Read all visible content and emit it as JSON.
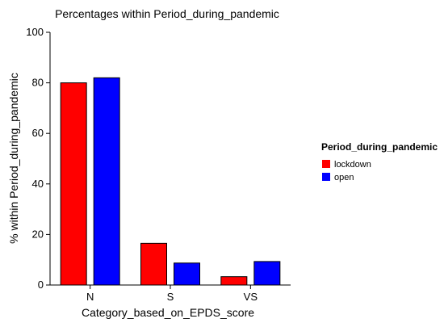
{
  "chart_data": {
    "type": "bar",
    "title": "Percentages within Period_during_pandemic",
    "xlabel": "Category_based_on_EPDS_score",
    "ylabel": "% within Period_during_pandemic",
    "categories": [
      "N",
      "S",
      "VS"
    ],
    "series": [
      {
        "name": "lockdown",
        "color": "#ff0000",
        "values": [
          80,
          16.5,
          3.3
        ]
      },
      {
        "name": "open",
        "color": "#0000ff",
        "values": [
          82,
          8.7,
          9.3
        ]
      }
    ],
    "ylim": [
      0,
      100
    ],
    "yticks": [
      0,
      20,
      40,
      60,
      80,
      100
    ],
    "grid": false,
    "legend": {
      "title": "Period_during_pandemic",
      "placement": "right"
    }
  }
}
